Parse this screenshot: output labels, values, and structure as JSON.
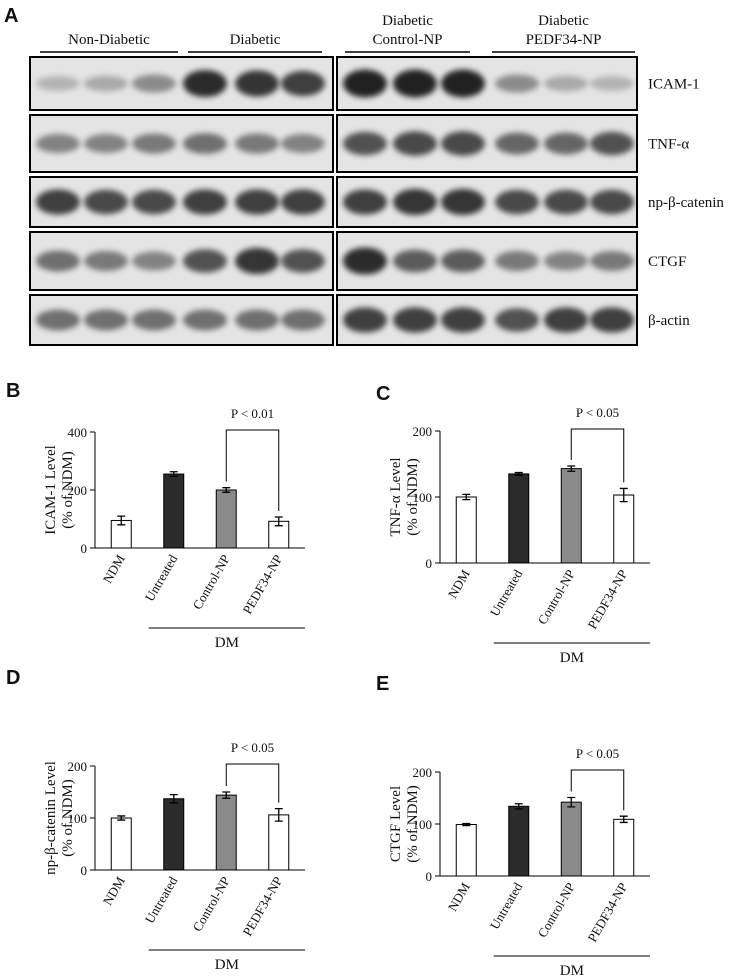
{
  "blot": {
    "panel_label": "A",
    "groups": [
      [
        "Non-Diabetic"
      ],
      [
        "Diabetic"
      ],
      [
        "Diabetic",
        "Control-NP"
      ],
      [
        "Diabetic",
        "PEDF34-NP"
      ]
    ],
    "rows": [
      "ICAM-1",
      "TNF-α",
      "np-β-catenin",
      "CTGF",
      "β-actin"
    ]
  },
  "chart_data": [
    {
      "type": "bar",
      "panel_label": "B",
      "ylabel": [
        "ICAM-1 Level",
        "(% of NDM)"
      ],
      "categories": [
        "NDM",
        "Untreated",
        "Control-NP",
        "PEDF34-NP"
      ],
      "group_label": "DM",
      "values": [
        95,
        255,
        200,
        92
      ],
      "errors": [
        15,
        8,
        8,
        15
      ],
      "colors": [
        "#ffffff",
        "#2b2b2b",
        "#8a8a8a",
        "#ffffff"
      ],
      "ylim": [
        0,
        400
      ],
      "yticks": [
        0,
        200,
        400
      ],
      "annotation": "P < 0.01"
    },
    {
      "type": "bar",
      "panel_label": "C",
      "ylabel": [
        "TNF-α Level",
        "(% of NDM)"
      ],
      "categories": [
        "NDM",
        "Untreated",
        "Control-NP",
        "PEDF34-NP"
      ],
      "group_label": "DM",
      "values": [
        100,
        135,
        143,
        103
      ],
      "errors": [
        4,
        2,
        4,
        10
      ],
      "colors": [
        "#ffffff",
        "#2b2b2b",
        "#8a8a8a",
        "#ffffff"
      ],
      "ylim": [
        0,
        200
      ],
      "yticks": [
        0,
        100,
        200
      ],
      "annotation": "P < 0.05"
    },
    {
      "type": "bar",
      "panel_label": "D",
      "ylabel": [
        "np-β-catenin  Level",
        "(% of NDM)"
      ],
      "categories": [
        "NDM",
        "Untreated",
        "Control-NP",
        "PEDF34-NP"
      ],
      "group_label": "DM",
      "values": [
        100,
        137,
        144,
        106
      ],
      "errors": [
        4,
        8,
        6,
        12
      ],
      "colors": [
        "#ffffff",
        "#2b2b2b",
        "#8a8a8a",
        "#ffffff"
      ],
      "ylim": [
        0,
        200
      ],
      "yticks": [
        0,
        100,
        200
      ],
      "annotation": "P < 0.05"
    },
    {
      "type": "bar",
      "panel_label": "E",
      "ylabel": [
        "CTGF Level",
        "(% of NDM)"
      ],
      "categories": [
        "NDM",
        "Untreated",
        "Control-NP",
        "PEDF34-NP"
      ],
      "group_label": "DM",
      "values": [
        99,
        134,
        142,
        109
      ],
      "errors": [
        2,
        5,
        9,
        6
      ],
      "colors": [
        "#ffffff",
        "#2b2b2b",
        "#8a8a8a",
        "#ffffff"
      ],
      "ylim": [
        0,
        200
      ],
      "yticks": [
        0,
        100,
        200
      ],
      "annotation": "P < 0.05"
    }
  ]
}
